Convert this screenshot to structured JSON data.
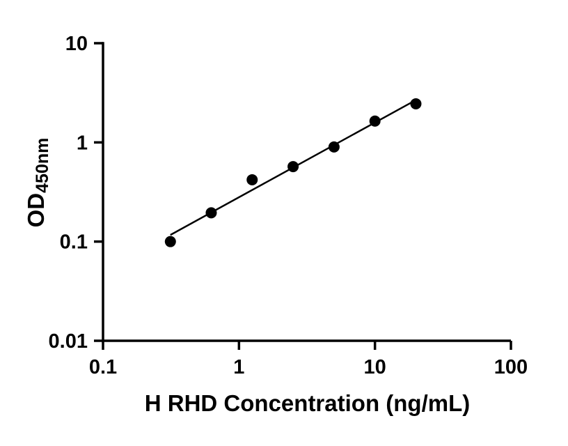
{
  "chart_data": {
    "type": "scatter",
    "title": "",
    "xlabel": "H RHD Concentration (ng/mL)",
    "ylabel": "OD",
    "ylabel_sub": "450nm",
    "x_scale": "log",
    "y_scale": "log",
    "xlim": [
      0.1,
      100
    ],
    "ylim": [
      0.01,
      10
    ],
    "x_ticks": [
      0.1,
      1,
      10,
      100
    ],
    "x_tick_labels": [
      "0.1",
      "1",
      "10",
      "100"
    ],
    "y_ticks": [
      0.01,
      0.1,
      1,
      10
    ],
    "y_tick_labels": [
      "0.01",
      "0.1",
      "1",
      "10"
    ],
    "grid": false,
    "legend": false,
    "series": [
      {
        "name": "standard-curve",
        "marker": "circle",
        "fit": "power-law-line",
        "x": [
          0.313,
          0.625,
          1.25,
          2.5,
          5,
          10,
          20
        ],
        "y": [
          0.1,
          0.195,
          0.42,
          0.57,
          0.9,
          1.64,
          2.45
        ]
      }
    ]
  },
  "colors": {
    "axis": "#000000",
    "marker": "#000000",
    "line": "#000000",
    "background": "#ffffff"
  }
}
